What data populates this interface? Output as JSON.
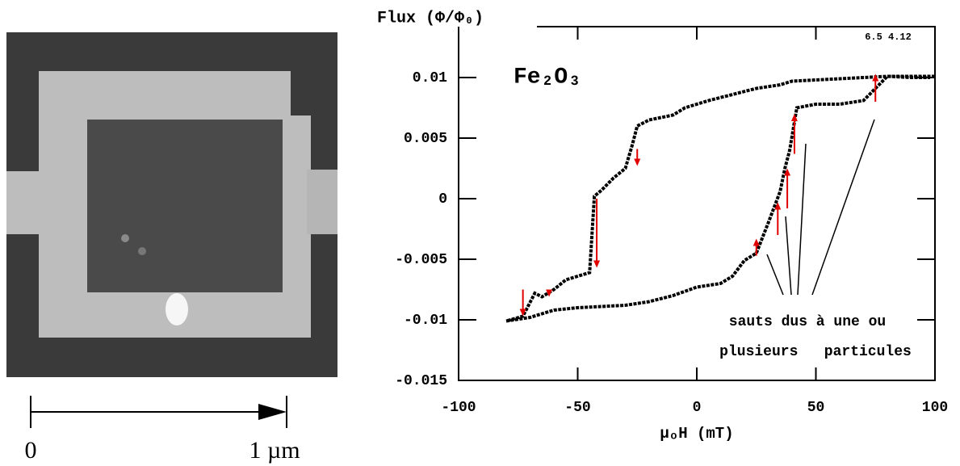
{
  "scale_bar": {
    "start_label": "0",
    "end_label": "1 µm"
  },
  "chart_data": {
    "type": "line",
    "y_label": "Flux (Φ/Φ₀)",
    "x_label": "μₒH (mT)",
    "annotations": [
      "Fe₂O₃",
      "6.5 4.12",
      "sauts dus à une ou",
      "plusieurs   particules"
    ],
    "xlim": [
      -100,
      100
    ],
    "xticks": [
      -100,
      -50,
      0,
      50,
      100
    ],
    "ylim": [
      -0.015,
      0.0142
    ],
    "yticks": [
      -0.015,
      -0.01,
      -0.005,
      0,
      0.005,
      0.01
    ],
    "series": [
      {
        "color": "#000000",
        "x": [
          100,
          90,
          80,
          70,
          60,
          50,
          40,
          35,
          25,
          15,
          5,
          -5,
          -10,
          -20,
          -25,
          -27,
          -30,
          -35,
          -40,
          -43,
          -45,
          -55,
          -60,
          -65,
          -68,
          -73,
          -80
        ],
        "values": [
          0.0101,
          0.0101,
          0.0101,
          0.01,
          0.0099,
          0.0098,
          0.0097,
          0.0094,
          0.0091,
          0.0086,
          0.0081,
          0.0075,
          0.0069,
          0.0065,
          0.006,
          0.0045,
          0.0025,
          0.0017,
          0.0007,
          0.0002,
          -0.0061,
          -0.0067,
          -0.0075,
          -0.0081,
          -0.0078,
          -0.0097,
          -0.0101
        ]
      },
      {
        "color": "#000000",
        "x": [
          -80,
          -70,
          -60,
          -50,
          -40,
          -30,
          -20,
          -10,
          0,
          10,
          15,
          20,
          25,
          30,
          35,
          37,
          39,
          42,
          50,
          60,
          70,
          80,
          90,
          98
        ],
        "values": [
          -0.0101,
          -0.0098,
          -0.0092,
          -0.009,
          -0.0089,
          -0.0088,
          -0.0085,
          -0.008,
          -0.0073,
          -0.007,
          -0.0064,
          -0.0051,
          -0.0045,
          -0.002,
          0.0006,
          0.0025,
          0.004,
          0.0075,
          0.0078,
          0.0078,
          0.0081,
          0.0101,
          0.01,
          0.01
        ]
      }
    ],
    "jumps": {
      "color": "#e00000",
      "x": [
        -25,
        -42,
        -62,
        -73,
        25,
        34,
        38,
        41,
        75
      ],
      "from": [
        0.0041,
        0,
        -0.0075,
        -0.0075,
        -0.0047,
        -0.003,
        -0.0008,
        0.0037,
        0.008
      ],
      "to": [
        0.0027,
        -0.0057,
        -0.0081,
        -0.0097,
        -0.0033,
        -0.0003,
        0.0025,
        0.007,
        0.0103
      ]
    }
  }
}
